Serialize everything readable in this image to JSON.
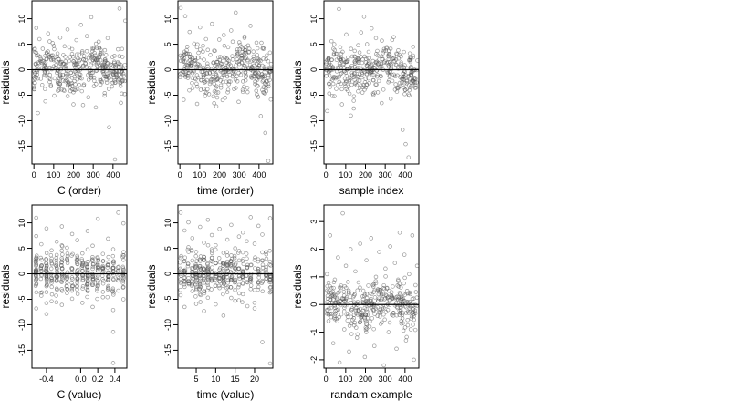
{
  "chart_data": [
    {
      "type": "scatter",
      "xlabel": "C (order)",
      "ylabel": "residuals",
      "xlim": [
        -10,
        470
      ],
      "ylim": [
        -18.5,
        13.5
      ],
      "xticks": [
        0,
        100,
        200,
        300,
        400
      ],
      "yticks": [
        -15,
        -10,
        -5,
        0,
        5,
        10
      ],
      "hline": 0,
      "pattern": "order",
      "x": [
        5,
        12,
        20,
        28,
        35,
        42,
        50,
        58,
        65,
        72,
        80,
        88,
        95,
        103,
        110,
        118,
        125,
        133,
        140,
        148,
        155,
        163,
        170,
        178,
        185,
        193,
        200,
        208,
        215,
        223,
        230,
        238,
        245,
        253,
        260,
        268,
        275,
        283,
        290,
        298,
        305,
        313,
        320,
        328,
        335,
        343,
        350,
        358,
        365,
        373,
        380,
        388,
        395,
        403,
        410,
        418,
        425,
        433,
        440,
        448,
        455,
        462
      ],
      "y": [
        4.1,
        8.2,
        -8.5,
        6.0,
        2.1,
        -3.0,
        0.8,
        -6.2,
        3.2,
        7.1,
        -2.4,
        1.9,
        5.2,
        -5.1,
        0.4,
        2.6,
        -1.7,
        6.3,
        -3.9,
        1.1,
        4.6,
        -0.8,
        7.9,
        1.7,
        -4.2,
        3.1,
        -6.8,
        0.5,
        5.8,
        2.2,
        -1.4,
        8.8,
        3.6,
        -2.9,
        1.3,
        6.6,
        -5.4,
        2.7,
        10.3,
        -0.6,
        4.3,
        -7.4,
        1.6,
        5.5,
        -2.1,
        3.0,
        0.2,
        -4.6,
        2.9,
        6.2,
        -11.3,
        1.0,
        -3.3,
        0.7,
        -17.6,
        -0.9,
        4.0,
        12.0,
        -6.5,
        2.5,
        -1.2,
        9.6
      ]
    },
    {
      "type": "scatter",
      "xlabel": "time (order)",
      "ylabel": "residuals",
      "xlim": [
        -10,
        470
      ],
      "ylim": [
        -18.5,
        13.5
      ],
      "xticks": [
        0,
        100,
        200,
        300,
        400
      ],
      "yticks": [
        -15,
        -10,
        -5,
        0,
        5,
        10
      ],
      "hline": 0,
      "pattern": "order",
      "x": [
        4,
        11,
        19,
        27,
        34,
        42,
        49,
        57,
        64,
        72,
        79,
        87,
        94,
        102,
        109,
        117,
        124,
        132,
        139,
        147,
        154,
        162,
        169,
        177,
        184,
        192,
        199,
        207,
        214,
        222,
        229,
        237,
        244,
        252,
        259,
        267,
        274,
        282,
        289,
        297,
        304,
        312,
        319,
        327,
        334,
        342,
        349,
        357,
        364,
        372,
        379,
        387,
        394,
        402,
        409,
        417,
        424,
        432,
        439,
        447,
        454,
        461
      ],
      "y": [
        12.1,
        2.4,
        -5.9,
        10.5,
        3.8,
        -1.2,
        7.4,
        0.9,
        -3.6,
        5.1,
        1.8,
        -6.7,
        3.3,
        8.3,
        -0.4,
        4.7,
        -2.5,
        6.0,
        1.2,
        -4.8,
        2.9,
        9.0,
        -1.9,
        3.7,
        -7.2,
        1.5,
        5.9,
        -3.1,
        0.6,
        6.8,
        -5.5,
        2.2,
        4.4,
        -1.0,
        7.7,
        0.3,
        -3.8,
        11.2,
        2.0,
        -6.3,
        4.9,
        1.4,
        -2.3,
        6.5,
        0.1,
        -4.4,
        3.4,
        8.6,
        -1.6,
        2.6,
        -0.7,
        5.3,
        -3.2,
        1.9,
        -9.1,
        0.8,
        4.1,
        -12.4,
        2.8,
        -17.9,
        -2.0,
        1.1
      ]
    },
    {
      "type": "scatter",
      "xlabel": "sample index",
      "ylabel": "residuals",
      "xlim": [
        -10,
        470
      ],
      "ylim": [
        -18.5,
        13.5
      ],
      "xticks": [
        0,
        100,
        200,
        300,
        400
      ],
      "yticks": [
        -15,
        -10,
        -5,
        0,
        5,
        10
      ],
      "hline": 0,
      "pattern": "order",
      "x": [
        6,
        13,
        21,
        28,
        36,
        43,
        51,
        58,
        66,
        73,
        81,
        88,
        96,
        103,
        111,
        118,
        126,
        133,
        141,
        148,
        156,
        163,
        171,
        178,
        186,
        193,
        201,
        208,
        216,
        223,
        231,
        238,
        246,
        253,
        261,
        268,
        276,
        283,
        291,
        298,
        306,
        313,
        321,
        328,
        336,
        343,
        351,
        358,
        366,
        373,
        381,
        388,
        396,
        403,
        411,
        418,
        426,
        433,
        441,
        448,
        456,
        463
      ],
      "y": [
        -8.1,
        2.3,
        -3.4,
        5.6,
        0.5,
        -5.2,
        3.1,
        -1.5,
        11.9,
        4.4,
        -6.8,
        1.0,
        -2.7,
        6.9,
        -4.1,
        0.2,
        -9.0,
        2.6,
        -7.6,
        1.3,
        -3.0,
        4.8,
        -0.9,
        7.3,
        2.0,
        10.4,
        -1.8,
        5.0,
        3.5,
        -0.3,
        8.1,
        1.7,
        -4.5,
        6.2,
        2.8,
        -2.2,
        0.7,
        5.7,
        -3.9,
        1.6,
        4.2,
        -0.6,
        3.0,
        -5.7,
        2.1,
        6.4,
        -1.3,
        0.9,
        3.8,
        -2.6,
        1.4,
        -11.8,
        -0.2,
        -14.6,
        0.3,
        -17.2,
        2.4,
        -1.1,
        4.5,
        0.0,
        -3.5,
        1.8
      ]
    },
    {
      "type": "scatter",
      "xlabel": "C (value)",
      "ylabel": "residuals",
      "xlim": [
        -0.57,
        0.54
      ],
      "ylim": [
        -18.5,
        13.5
      ],
      "xticks": [
        -0.4,
        0.0,
        0.2,
        0.4
      ],
      "yticks": [
        -15,
        -10,
        -5,
        0,
        5,
        10
      ],
      "hline": 0,
      "pattern": "columns",
      "x": [
        -0.52,
        -0.52,
        -0.52,
        -0.52,
        -0.52,
        -0.46,
        -0.46,
        -0.46,
        -0.4,
        -0.4,
        -0.4,
        -0.4,
        -0.4,
        -0.4,
        -0.34,
        -0.34,
        -0.34,
        -0.28,
        -0.28,
        -0.28,
        -0.28,
        -0.22,
        -0.22,
        -0.22,
        -0.16,
        -0.16,
        -0.16,
        -0.16,
        -0.1,
        -0.1,
        -0.1,
        -0.04,
        -0.04,
        -0.04,
        0.02,
        0.02,
        0.02,
        0.08,
        0.08,
        0.08,
        0.14,
        0.14,
        0.14,
        0.2,
        0.2,
        0.2,
        0.26,
        0.26,
        0.26,
        0.32,
        0.32,
        0.32,
        0.38,
        0.38,
        0.38,
        0.38,
        0.38,
        0.38,
        0.44,
        0.44,
        0.44,
        0.5,
        0.5
      ],
      "y": [
        11.0,
        3.2,
        -2.1,
        -6.8,
        7.4,
        1.5,
        -4.3,
        5.8,
        2.0,
        0.5,
        -1.1,
        -3.6,
        8.9,
        -7.9,
        4.6,
        -0.8,
        -5.4,
        6.3,
        1.2,
        -2.9,
        3.7,
        0.0,
        -6.1,
        9.3,
        2.8,
        -1.7,
        5.1,
        -3.8,
        7.8,
        0.9,
        -4.9,
        3.5,
        -2.4,
        6.6,
        1.8,
        -5.7,
        4.0,
        -0.4,
        8.4,
        -3.1,
        2.5,
        -6.5,
        5.5,
        0.7,
        -1.9,
        10.8,
        3.9,
        -4.6,
        1.1,
        6.9,
        -2.7,
        0.3,
        2.2,
        -1.0,
        -11.4,
        -17.5,
        4.8,
        -7.1,
        12.0,
        0.6,
        -3.3,
        9.9,
        -5.0
      ]
    },
    {
      "type": "scatter",
      "xlabel": "time (value)",
      "ylabel": "residuals",
      "xlim": [
        0.3,
        24.7
      ],
      "ylim": [
        -18.5,
        13.5
      ],
      "xticks": [
        5,
        10,
        15,
        20
      ],
      "yticks": [
        -15,
        -10,
        -5,
        0,
        5,
        10
      ],
      "hline": 0,
      "pattern": "columns",
      "x": [
        1,
        1,
        1,
        2,
        2,
        2,
        3,
        3,
        3,
        4,
        4,
        4,
        5,
        5,
        5,
        6,
        6,
        6,
        7,
        7,
        7,
        8,
        8,
        8,
        9,
        9,
        9,
        10,
        10,
        10,
        11,
        11,
        11,
        12,
        12,
        12,
        12,
        12,
        13,
        13,
        13,
        14,
        14,
        14,
        15,
        15,
        15,
        16,
        16,
        16,
        17,
        17,
        17,
        18,
        18,
        18,
        19,
        19,
        19,
        20,
        20,
        20,
        21,
        21,
        21,
        22,
        22,
        22,
        23,
        23,
        23,
        24,
        24,
        24
      ],
      "y": [
        12.0,
        3.1,
        -4.2,
        8.5,
        0.4,
        -6.5,
        5.2,
        -1.8,
        10.1,
        2.6,
        -3.4,
        7.0,
        -0.7,
        4.3,
        -5.9,
        9.2,
        1.5,
        -2.5,
        6.1,
        -7.3,
        3.3,
        0.8,
        -4.7,
        10.6,
        4.8,
        -1.3,
        7.6,
        2.1,
        -6.0,
        5.6,
        -2.8,
        8.8,
        0.2,
        1.9,
        0.6,
        -1.5,
        -8.2,
        4.1,
        6.7,
        -3.6,
        2.4,
        9.6,
        -0.9,
        3.6,
        5.0,
        -5.3,
        1.0,
        7.3,
        -2.2,
        4.5,
        0.1,
        -4.0,
        8.1,
        3.0,
        -1.6,
        6.4,
        -3.0,
        11.1,
        1.7,
        5.9,
        -6.8,
        2.7,
        9.4,
        0.5,
        -2.6,
        4.2,
        -13.4,
        7.7,
        1.3,
        -0.3,
        3.8,
        -17.6,
        10.9,
        -1.2
      ]
    },
    {
      "type": "scatter",
      "xlabel": "randam example",
      "ylabel": "residuals",
      "xlim": [
        -10,
        470
      ],
      "ylim": [
        -2.3,
        3.6
      ],
      "xticks": [
        0,
        100,
        200,
        300,
        400
      ],
      "yticks": [
        -2,
        -1,
        0,
        1,
        2,
        3
      ],
      "hline": 0,
      "pattern": "order",
      "x": [
        5,
        13,
        21,
        29,
        37,
        45,
        53,
        61,
        69,
        77,
        85,
        93,
        101,
        109,
        117,
        125,
        133,
        141,
        149,
        157,
        165,
        173,
        181,
        189,
        197,
        205,
        213,
        221,
        229,
        237,
        245,
        253,
        261,
        269,
        277,
        285,
        293,
        301,
        309,
        317,
        325,
        333,
        341,
        349,
        357,
        365,
        373,
        381,
        389,
        397,
        405,
        413,
        421,
        429,
        437,
        445,
        453,
        461
      ],
      "y": [
        1.1,
        -0.6,
        2.5,
        0.3,
        -1.4,
        0.9,
        -0.2,
        1.7,
        -2.1,
        0.6,
        3.3,
        -0.9,
        1.4,
        0.0,
        -1.7,
        2.0,
        0.4,
        -0.5,
        1.2,
        -1.2,
        0.8,
        2.2,
        -0.3,
        0.5,
        -1.9,
        1.6,
        0.1,
        -0.8,
        2.4,
        0.7,
        -1.5,
        1.0,
        -0.1,
        1.9,
        -0.7,
        0.2,
        -2.2,
        1.3,
        0.6,
        -1.0,
        2.1,
        0.3,
        -0.4,
        1.5,
        -1.6,
        0.9,
        2.6,
        -0.6,
        0.0,
        1.8,
        -1.3,
        0.4,
        1.1,
        -0.9,
        2.5,
        -2.0,
        0.7,
        1.4
      ]
    }
  ]
}
